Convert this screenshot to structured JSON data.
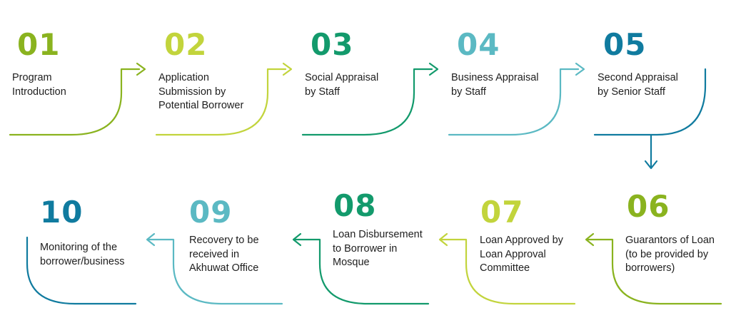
{
  "colors": {
    "lime": "#8ab31f",
    "yellow_green": "#c2d43c",
    "green": "#139a6c",
    "teal": "#5bb9c3",
    "blue": "#107b9f"
  },
  "steps": [
    {
      "num": "01",
      "lines": [
        "Program",
        "Introduction"
      ],
      "color": "#8ab31f"
    },
    {
      "num": "02",
      "lines": [
        "Application",
        "Submission by",
        "Potential Borrower"
      ],
      "color": "#c2d43c"
    },
    {
      "num": "03",
      "lines": [
        "Social Appraisal",
        "by Staff"
      ],
      "color": "#139a6c"
    },
    {
      "num": "04",
      "lines": [
        "Business Appraisal",
        "by Staff"
      ],
      "color": "#5bb9c3"
    },
    {
      "num": "05",
      "lines": [
        "Second Appraisal",
        "by Senior Staff"
      ],
      "color": "#107b9f"
    },
    {
      "num": "06",
      "lines": [
        "Guarantors of Loan",
        "(to be provided by",
        "borrowers)"
      ],
      "color": "#8ab31f"
    },
    {
      "num": "07",
      "lines": [
        "Loan Approved by",
        "Loan Approval",
        "Committee"
      ],
      "color": "#c2d43c"
    },
    {
      "num": "08",
      "lines": [
        "Loan Disbursement",
        "to Borrower in",
        "Mosque"
      ],
      "color": "#139a6c"
    },
    {
      "num": "09",
      "lines": [
        "Recovery to be",
        "received in",
        "Akhuwat Office"
      ],
      "color": "#5bb9c3"
    },
    {
      "num": "10",
      "lines": [
        "Monitoring of the",
        "borrower/business"
      ],
      "color": "#107b9f"
    }
  ]
}
